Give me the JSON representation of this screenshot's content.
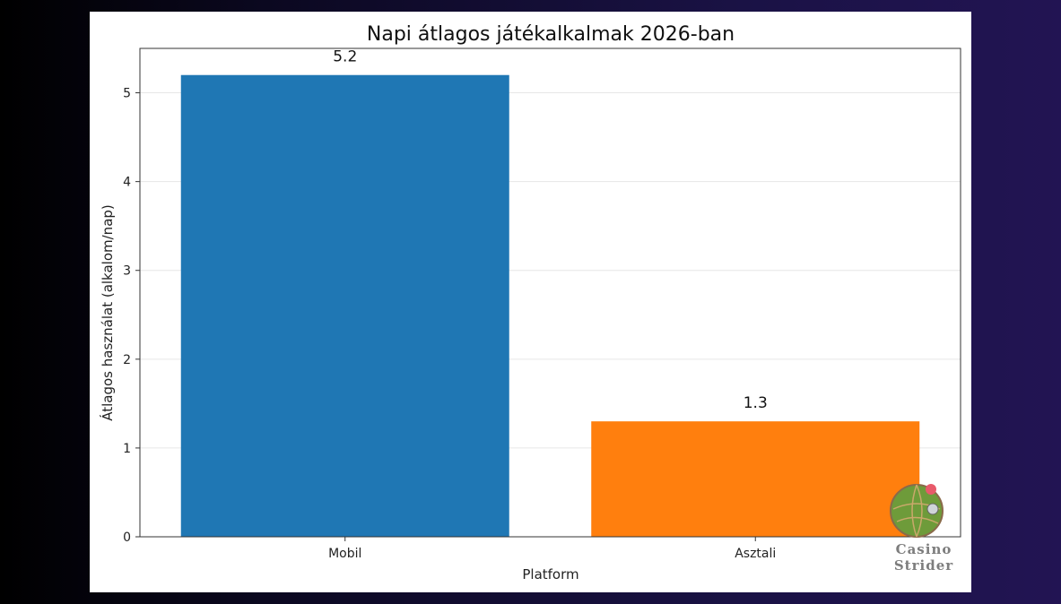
{
  "chart_data": {
    "type": "bar",
    "title": "Napi átlagos játékalkalmak 2026-ban",
    "xlabel": "Platform",
    "ylabel": "Átlagos használat (alkalom/nap)",
    "categories": [
      "Mobil",
      "Asztali"
    ],
    "values": [
      5.2,
      1.3
    ],
    "data_labels": [
      "5.2",
      "1.3"
    ],
    "colors": [
      "#1f77b4",
      "#ff7f0e"
    ],
    "ylim": [
      0,
      5.5
    ],
    "yticks": [
      0,
      1,
      2,
      3,
      4,
      5
    ],
    "grid": "horizontal",
    "legend": "none"
  },
  "watermark": {
    "line1": "Casino",
    "line2": "Strider",
    "icon": "globe-logo-icon"
  }
}
